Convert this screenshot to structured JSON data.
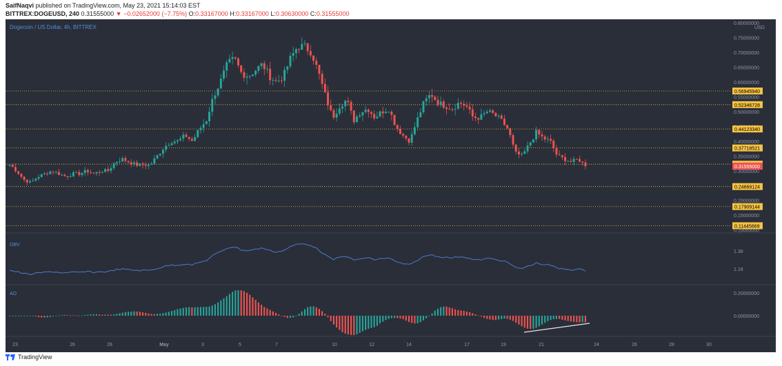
{
  "header": {
    "author": "SaifNaqvi",
    "published": "published on TradingView.com, May 23, 2021 15:14:03 EST",
    "symbol": "BITTREX:DOGEUSD, 240",
    "last": "0.31555000",
    "change": "−0.02652000 (−7.75%)",
    "o_label": "O:",
    "o_val": "0.33167000",
    "h_label": "H:",
    "h_val": "0.33167000",
    "l_label": "L:",
    "l_val": "0.30630000",
    "c_label": "C:",
    "c_val": "0.31555000"
  },
  "pane": {
    "title": "Dogecoin / US Dollar, 4h, BITTREX",
    "currency": "USD",
    "obv_label": "OBV",
    "ao_label": "AO"
  },
  "colors": {
    "background": "#2a2e39",
    "up": "#26a69a",
    "down": "#ef5350",
    "obv_line": "#4a7cc9",
    "level": "#f6c343",
    "price_tag": "#ef5350",
    "ao_up": "#26a69a",
    "ao_down": "#ef5350"
  },
  "footer": {
    "brand": "TradingView"
  },
  "chart_data": {
    "type": "candlestick",
    "title": "Dogecoin / US Dollar, 4h, BITTREX",
    "price_axis_ticks": [
      "0.80000000",
      "0.75000000",
      "0.70000000",
      "0.65000000",
      "0.60000000",
      "0.55000000",
      "0.50000000",
      "0.45000000",
      "0.40000000",
      "0.35000000",
      "0.30000000",
      "0.25000000",
      "0.20000000",
      "0.15000000",
      "0.10000000"
    ],
    "ylim": [
      0.09,
      0.8
    ],
    "horizontal_levels": [
      "0.56945940",
      "0.52346728",
      "0.44123340",
      "0.37718521",
      "0.32231614",
      "0.24669124",
      "0.17909144",
      "0.11445669"
    ],
    "last_price": "0.31555000",
    "x_ticks": [
      "23",
      "26",
      "28",
      "May",
      "3",
      "5",
      "7",
      "10",
      "12",
      "14",
      "17",
      "19",
      "21",
      "24",
      "26",
      "28",
      "30"
    ],
    "close_path": [
      0.32,
      0.3,
      0.27,
      0.26,
      0.28,
      0.29,
      0.3,
      0.29,
      0.28,
      0.29,
      0.29,
      0.3,
      0.29,
      0.3,
      0.3,
      0.33,
      0.34,
      0.33,
      0.32,
      0.32,
      0.32,
      0.35,
      0.38,
      0.4,
      0.4,
      0.42,
      0.4,
      0.44,
      0.47,
      0.55,
      0.6,
      0.66,
      0.68,
      0.63,
      0.62,
      0.64,
      0.66,
      0.62,
      0.6,
      0.62,
      0.68,
      0.72,
      0.72,
      0.7,
      0.63,
      0.55,
      0.48,
      0.52,
      0.54,
      0.47,
      0.5,
      0.51,
      0.48,
      0.5,
      0.51,
      0.45,
      0.42,
      0.4,
      0.47,
      0.53,
      0.56,
      0.53,
      0.52,
      0.51,
      0.53,
      0.52,
      0.48,
      0.48,
      0.5,
      0.49,
      0.47,
      0.44,
      0.36,
      0.35,
      0.39,
      0.43,
      0.41,
      0.4,
      0.35,
      0.34,
      0.33,
      0.34,
      0.31555
    ],
    "obv": {
      "last_label": "1.38",
      "ticks": [
        "1.38",
        "1.18"
      ]
    },
    "ao": {
      "ticks": [
        "0.20000000",
        "0.00000000"
      ]
    }
  }
}
